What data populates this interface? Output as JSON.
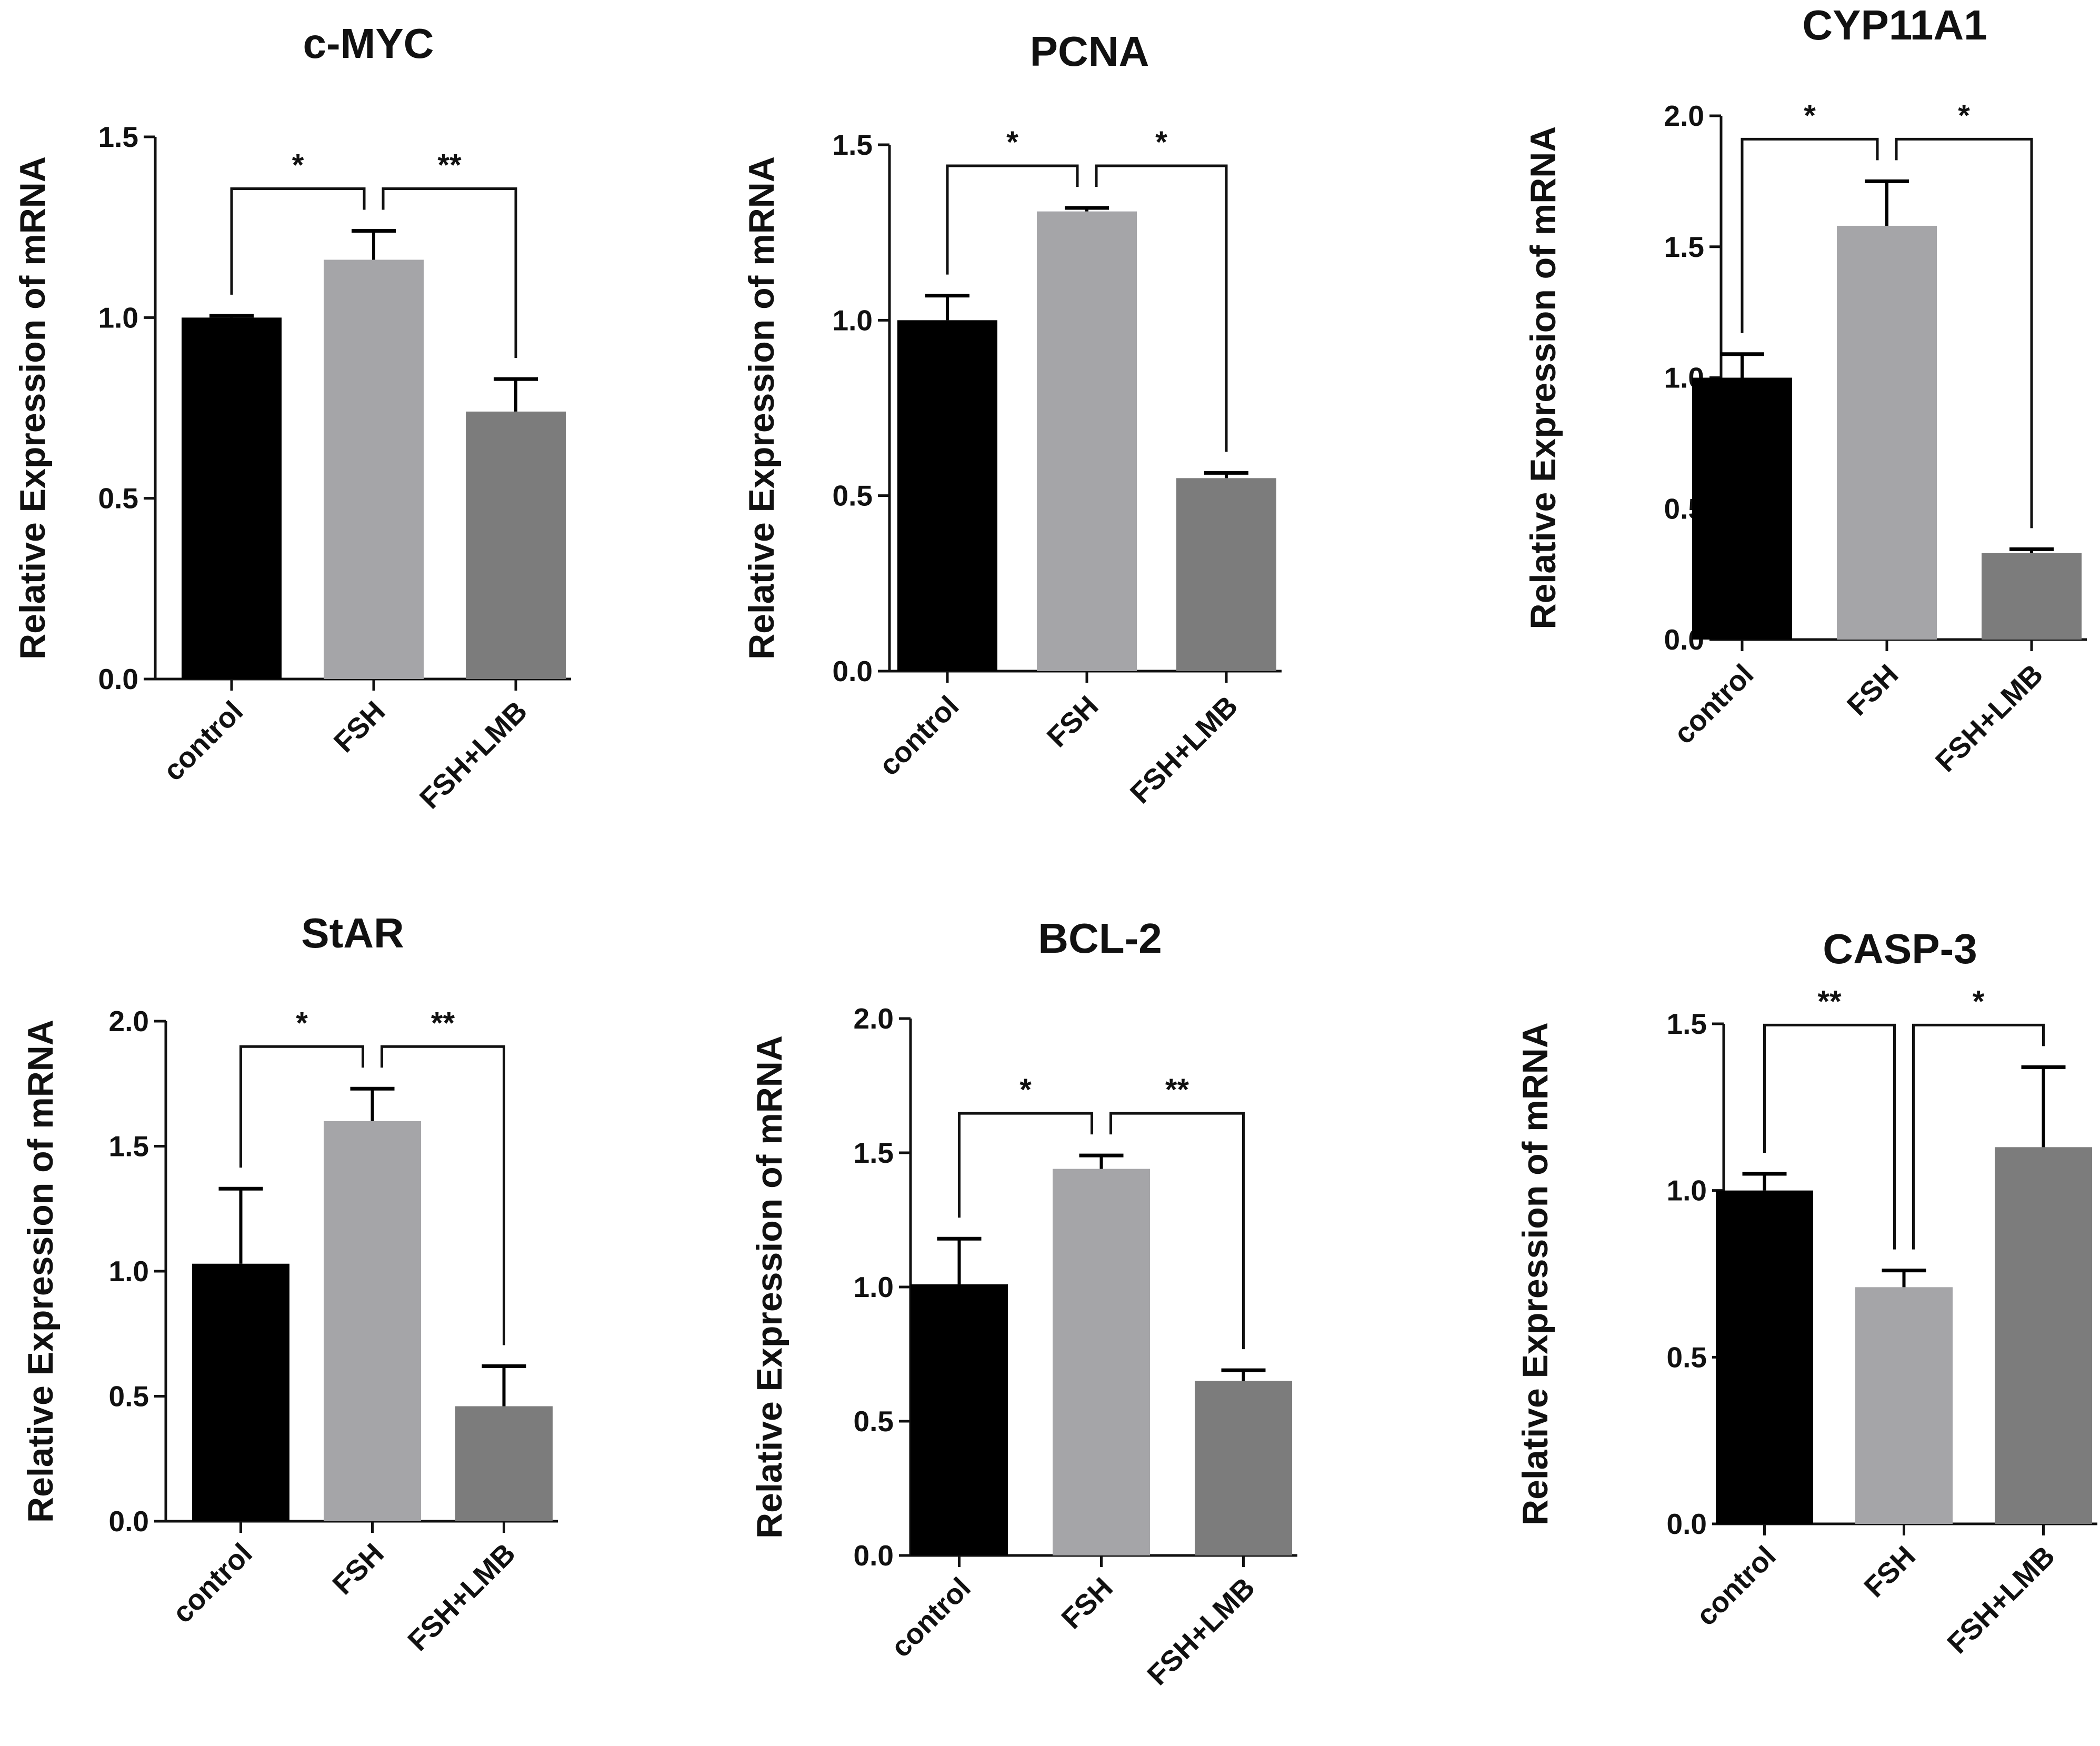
{
  "chart_data": [
    {
      "type": "bar",
      "title": "c-MYC",
      "ylabel": "Relative Expression of mRNA",
      "xlabel": "",
      "categories": [
        "control",
        "FSH",
        "FSH+LMB"
      ],
      "values": [
        1.0,
        1.16,
        0.74
      ],
      "errors": [
        0.005,
        0.08,
        0.09
      ],
      "ylim": [
        0,
        1.5
      ],
      "yticks": [
        "0.0",
        "0.5",
        "1.0",
        "1.5"
      ],
      "significance": [
        {
          "from": 0,
          "to": 1,
          "label": "*"
        },
        {
          "from": 1,
          "to": 2,
          "label": "**"
        }
      ]
    },
    {
      "type": "bar",
      "title": "PCNA",
      "ylabel": "Relative Expression of mRNA",
      "xlabel": "",
      "categories": [
        "control",
        "FSH",
        "FSH+LMB"
      ],
      "values": [
        1.0,
        1.31,
        0.55
      ],
      "errors": [
        0.07,
        0.01,
        0.015
      ],
      "ylim": [
        0,
        1.5
      ],
      "yticks": [
        "0.0",
        "0.5",
        "1.0",
        "1.5"
      ],
      "significance": [
        {
          "from": 0,
          "to": 1,
          "label": "*"
        },
        {
          "from": 1,
          "to": 2,
          "label": "*"
        }
      ]
    },
    {
      "type": "bar",
      "title": "CYP11A1",
      "ylabel": "Relative Expression of mRNA",
      "xlabel": "",
      "categories": [
        "control",
        "FSH",
        "FSH+LMB"
      ],
      "values": [
        1.0,
        1.58,
        0.33
      ],
      "errors": [
        0.09,
        0.17,
        0.015
      ],
      "ylim": [
        0,
        2.0
      ],
      "yticks": [
        "0.0",
        "0.5",
        "1.0",
        "1.5",
        "2.0"
      ],
      "significance": [
        {
          "from": 0,
          "to": 1,
          "label": "*"
        },
        {
          "from": 1,
          "to": 2,
          "label": "*"
        }
      ]
    },
    {
      "type": "bar",
      "title": "StAR",
      "ylabel": "Relative Expression of mRNA",
      "xlabel": "",
      "categories": [
        "control",
        "FSH",
        "FSH+LMB"
      ],
      "values": [
        1.03,
        1.6,
        0.46
      ],
      "errors": [
        0.3,
        0.13,
        0.16
      ],
      "ylim": [
        0,
        2.0
      ],
      "yticks": [
        "0.0",
        "0.5",
        "1.0",
        "1.5",
        "2.0"
      ],
      "significance": [
        {
          "from": 0,
          "to": 1,
          "label": "*"
        },
        {
          "from": 1,
          "to": 2,
          "label": "**"
        }
      ]
    },
    {
      "type": "bar",
      "title": "BCL-2",
      "ylabel": "Relative Expression of mRNA",
      "xlabel": "",
      "categories": [
        "control",
        "FSH",
        "FSH+LMB"
      ],
      "values": [
        1.01,
        1.44,
        0.65
      ],
      "errors": [
        0.17,
        0.05,
        0.04
      ],
      "ylim": [
        0,
        2.0
      ],
      "yticks": [
        "0.0",
        "0.5",
        "1.0",
        "1.5",
        "2.0"
      ],
      "significance": [
        {
          "from": 0,
          "to": 1,
          "label": "*"
        },
        {
          "from": 1,
          "to": 2,
          "label": "**"
        }
      ]
    },
    {
      "type": "bar",
      "title": "CASP-3",
      "ylabel": "Relative Expression of mRNA",
      "xlabel": "",
      "categories": [
        "control",
        "FSH",
        "FSH+LMB"
      ],
      "values": [
        1.0,
        0.71,
        1.13
      ],
      "errors": [
        0.05,
        0.05,
        0.24
      ],
      "ylim": [
        0,
        1.5
      ],
      "yticks": [
        "0.0",
        "0.5",
        "1.0",
        "1.5"
      ],
      "significance": [
        {
          "from": 0,
          "to": 1,
          "label": "**"
        },
        {
          "from": 1,
          "to": 2,
          "label": "*"
        }
      ]
    }
  ],
  "colors": {
    "bar_control": "#000000",
    "bar_fsh": "#a5a5a8",
    "bar_fsh_lmb": "#7c7c7c",
    "axis": "#111111"
  }
}
